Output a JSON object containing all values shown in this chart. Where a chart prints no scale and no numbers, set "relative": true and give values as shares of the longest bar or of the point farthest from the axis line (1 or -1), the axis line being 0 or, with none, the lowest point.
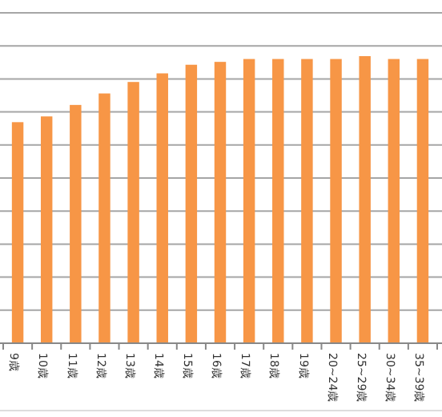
{
  "chart_data": {
    "type": "bar",
    "relative": true,
    "grid": "y",
    "color": "#f79646",
    "categories": [
      "9歳",
      "10歳",
      "11歳",
      "12歳",
      "13歳",
      "14歳",
      "15歳",
      "16歳",
      "17歳",
      "18歳",
      "19歳",
      "20~24歳",
      "25~29歳",
      "30~34歳",
      "35~39歳"
    ],
    "values": [
      0.77,
      0.79,
      0.83,
      0.87,
      0.91,
      0.94,
      0.97,
      0.98,
      0.99,
      0.99,
      0.99,
      0.99,
      1,
      0.99,
      0.99
    ]
  }
}
